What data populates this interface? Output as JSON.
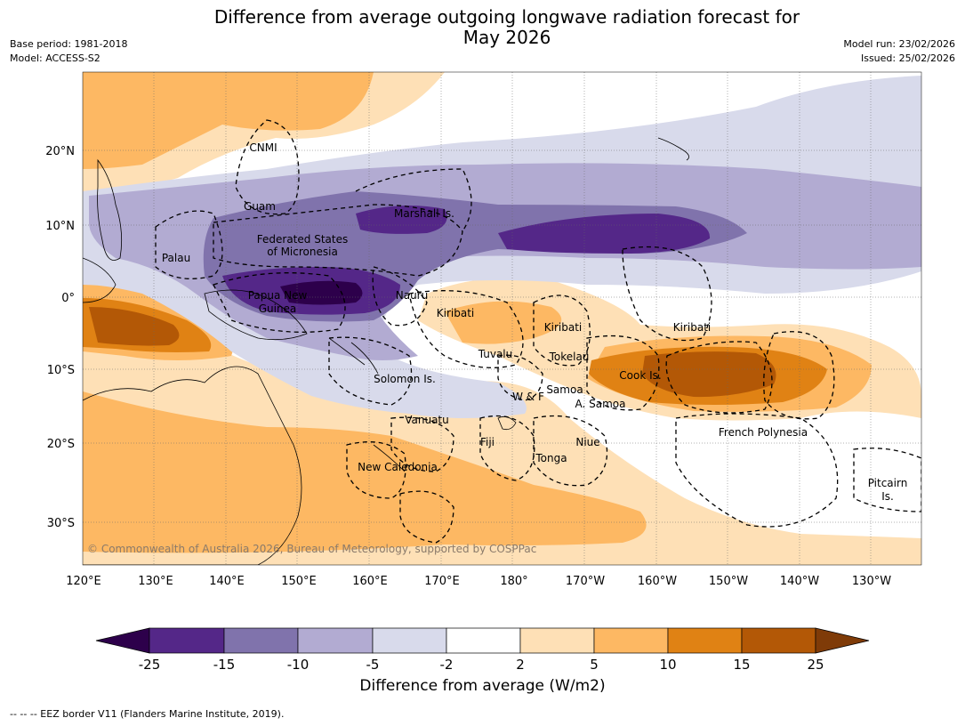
{
  "header": {
    "title_line1": "Difference from average outgoing longwave radiation forecast for",
    "title_line2": "May 2026",
    "base_period": "Base period: 1981-2018",
    "model": "Model: ACCESS-S2",
    "model_run": "Model run: 23/02/2026",
    "issued": "Issued: 25/02/2026"
  },
  "map": {
    "copyright": "© Commonwealth of Australia 2026, Bureau of Meteorology, supported by COSPPac",
    "lon_ticks": [
      "120°E",
      "130°E",
      "140°E",
      "150°E",
      "160°E",
      "170°E",
      "180°",
      "170°W",
      "160°W",
      "150°W",
      "140°W",
      "130°W"
    ],
    "lat_ticks": [
      "20°N",
      "10°N",
      "0°",
      "10°S",
      "20°S",
      "30°S"
    ],
    "regions": {
      "cnmi": "CNMI",
      "guam": "Guam",
      "marshall": "Marshall Is.",
      "fsm1": "Federated States",
      "fsm2": "of Micronesia",
      "palau": "Palau",
      "png1": "Papua New",
      "png2": "Guinea",
      "nauru": "Nauru",
      "kiribati_w": "Kiribati",
      "kiribati_c": "Kiribati",
      "kiribati_e": "Kiribati",
      "tuvalu": "Tuvalu",
      "tokelau": "Tokelau",
      "cook": "Cook Is.",
      "solomon": "Solomon Is.",
      "wf": "W & F",
      "samoa": "Samoa",
      "asamoa": "A. Samoa",
      "vanuatu": "Vanuatu",
      "fiji": "Fiji",
      "niue": "Niue",
      "tonga": "Tonga",
      "newcal": "New Caledonia",
      "frpoly": "French Polynesia",
      "pitcairn1": "Pitcairn",
      "pitcairn2": "Is."
    }
  },
  "colorbar": {
    "title": "Difference from average (W/m2)",
    "ticks": [
      "-25",
      "-15",
      "-10",
      "-5",
      "-2",
      "2",
      "5",
      "10",
      "15",
      "25"
    ],
    "colors": {
      "lt_minus25": "#2d004b",
      "m25_m15": "#542788",
      "m15_m10": "#8073ac",
      "m10_m5": "#b2abd2",
      "m5_m2": "#d8daeb",
      "m2_p2": "#ffffff",
      "p2_p5": "#fee0b6",
      "p5_p10": "#fdb863",
      "p10_p15": "#e08214",
      "p15_p25": "#b35806",
      "gt_25": "#7f3b08"
    }
  },
  "footnote": "-- -- -- EEZ border V11 (Flanders Marine Institute, 2019)."
}
